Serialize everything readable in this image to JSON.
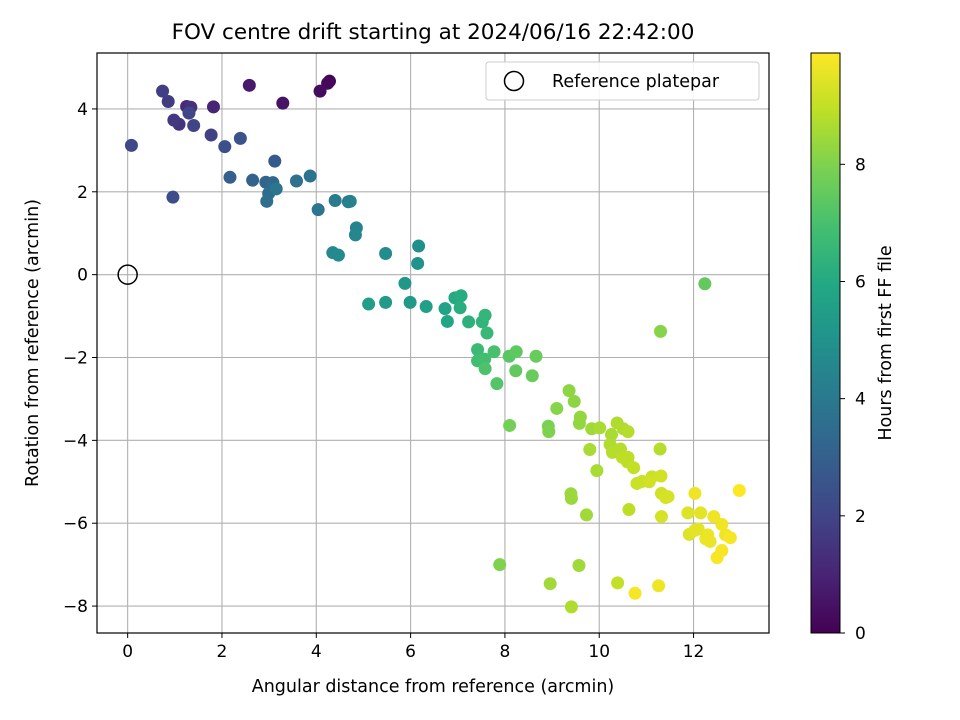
{
  "chart_data": {
    "type": "scatter",
    "title": "FOV centre drift starting at 2024/06/16 22:42:00",
    "xlabel": "Angular distance from reference (arcmin)",
    "ylabel": "Rotation from reference (arcmin)",
    "xlim": [
      -0.65,
      13.6
    ],
    "ylim": [
      -8.65,
      5.35
    ],
    "xticks": [
      0,
      2,
      4,
      6,
      8,
      10,
      12
    ],
    "yticks": [
      -8,
      -6,
      -4,
      -2,
      0,
      2,
      4
    ],
    "xtick_labels": [
      "0",
      "2",
      "4",
      "6",
      "8",
      "10",
      "12"
    ],
    "ytick_labels": [
      "−8",
      "−6",
      "−4",
      "−2",
      "0",
      "2",
      "4"
    ],
    "grid": true,
    "legend": {
      "label": "Reference platepar",
      "position": "top-right"
    },
    "reference_point": {
      "x": 0,
      "y": 0
    },
    "colorbar": {
      "label": "Hours from first FF file",
      "range": [
        0,
        9.9
      ],
      "ticks": [
        0,
        2,
        4,
        6,
        8
      ],
      "tick_labels": [
        "0",
        "2",
        "4",
        "6",
        "8"
      ],
      "colormap": "viridis"
    },
    "points": [
      [
        4.28,
        4.67,
        0.1
      ],
      [
        4.24,
        4.62,
        0.2
      ],
      [
        4.08,
        4.43,
        0.3
      ],
      [
        3.29,
        4.14,
        0.5
      ],
      [
        2.58,
        4.57,
        0.7
      ],
      [
        1.82,
        4.05,
        1.0
      ],
      [
        1.25,
        4.06,
        1.2
      ],
      [
        1.34,
        4.04,
        1.4
      ],
      [
        1.09,
        3.63,
        1.5
      ],
      [
        0.98,
        3.73,
        1.6
      ],
      [
        0.86,
        4.18,
        1.7
      ],
      [
        0.74,
        4.43,
        1.8
      ],
      [
        1.77,
        3.37,
        1.9
      ],
      [
        1.4,
        3.6,
        2.0
      ],
      [
        1.3,
        3.9,
        2.1
      ],
      [
        0.08,
        3.12,
        2.2
      ],
      [
        0.96,
        1.87,
        2.3
      ],
      [
        2.06,
        3.09,
        2.4
      ],
      [
        2.39,
        3.29,
        2.5
      ],
      [
        3.12,
        2.74,
        2.8
      ],
      [
        2.17,
        2.35,
        3.0
      ],
      [
        2.65,
        2.28,
        3.1
      ],
      [
        2.93,
        2.23,
        3.2
      ],
      [
        3.08,
        2.22,
        3.3
      ],
      [
        3.05,
        2.08,
        3.4
      ],
      [
        2.99,
        1.96,
        3.5
      ],
      [
        2.95,
        1.77,
        3.6
      ],
      [
        3.58,
        2.26,
        3.7
      ],
      [
        3.87,
        2.38,
        3.8
      ],
      [
        4.04,
        1.57,
        3.9
      ],
      [
        3.15,
        2.07,
        3.9
      ],
      [
        4.4,
        1.79,
        4.1
      ],
      [
        4.68,
        1.76,
        4.2
      ],
      [
        4.72,
        1.77,
        4.3
      ],
      [
        4.85,
        1.13,
        4.4
      ],
      [
        4.83,
        0.96,
        4.5
      ],
      [
        4.35,
        0.53,
        4.6
      ],
      [
        4.47,
        0.47,
        4.7
      ],
      [
        5.47,
        0.51,
        4.8
      ],
      [
        6.17,
        0.69,
        4.9
      ],
      [
        6.15,
        0.27,
        5.0
      ],
      [
        5.88,
        -0.21,
        5.2
      ],
      [
        5.99,
        -0.67,
        5.3
      ],
      [
        5.47,
        -0.67,
        5.4
      ],
      [
        5.11,
        -0.71,
        5.5
      ],
      [
        6.33,
        -0.77,
        5.6
      ],
      [
        6.73,
        -0.82,
        5.7
      ],
      [
        6.78,
        -1.13,
        5.8
      ],
      [
        6.94,
        -0.56,
        6.0
      ],
      [
        7.07,
        -0.51,
        6.1
      ],
      [
        7.05,
        -0.8,
        6.2
      ],
      [
        7.23,
        -1.14,
        6.3
      ],
      [
        7.52,
        -1.14,
        6.4
      ],
      [
        7.58,
        -0.98,
        6.5
      ],
      [
        7.62,
        -1.41,
        6.6
      ],
      [
        7.42,
        -1.81,
        6.7
      ],
      [
        7.42,
        -2.08,
        6.8
      ],
      [
        7.57,
        -2.04,
        6.9
      ],
      [
        7.77,
        -1.86,
        7.0
      ],
      [
        7.58,
        -2.27,
        7.1
      ],
      [
        7.83,
        -2.63,
        7.2
      ],
      [
        8.09,
        -1.97,
        7.3
      ],
      [
        8.24,
        -1.86,
        7.4
      ],
      [
        8.23,
        -2.32,
        7.5
      ],
      [
        8.58,
        -2.44,
        7.6
      ],
      [
        8.66,
        -1.97,
        7.6
      ],
      [
        8.1,
        -3.64,
        7.8
      ],
      [
        8.92,
        -3.66,
        7.9
      ],
      [
        8.93,
        -3.79,
        8.0
      ],
      [
        7.89,
        -7.0,
        8.0
      ],
      [
        12.24,
        -0.22,
        7.5
      ],
      [
        11.3,
        -1.37,
        8.1
      ],
      [
        9.1,
        -3.23,
        8.1
      ],
      [
        9.36,
        -2.8,
        8.2
      ],
      [
        9.47,
        -3.06,
        8.2
      ],
      [
        9.6,
        -3.44,
        8.3
      ],
      [
        9.58,
        -3.59,
        8.3
      ],
      [
        9.4,
        -5.29,
        8.4
      ],
      [
        9.41,
        -5.4,
        8.4
      ],
      [
        9.73,
        -5.8,
        8.5
      ],
      [
        8.96,
        -7.46,
        8.5
      ],
      [
        9.84,
        -3.72,
        8.5
      ],
      [
        10.01,
        -3.7,
        8.6
      ],
      [
        9.8,
        -4.22,
        8.6
      ],
      [
        9.95,
        -4.73,
        8.6
      ],
      [
        10.26,
        -3.86,
        8.6
      ],
      [
        10.23,
        -4.1,
        8.7
      ],
      [
        10.38,
        -3.58,
        8.7
      ],
      [
        10.51,
        -3.72,
        8.7
      ],
      [
        10.61,
        -3.79,
        8.8
      ],
      [
        10.28,
        -4.29,
        8.8
      ],
      [
        10.45,
        -4.21,
        8.8
      ],
      [
        10.49,
        -4.41,
        8.9
      ],
      [
        10.61,
        -4.41,
        8.9
      ],
      [
        10.6,
        -4.52,
        8.9
      ],
      [
        10.73,
        -4.66,
        9.0
      ],
      [
        10.63,
        -5.67,
        8.9
      ],
      [
        9.57,
        -7.02,
        8.5
      ],
      [
        9.41,
        -8.02,
        8.7
      ],
      [
        10.39,
        -7.44,
        9.0
      ],
      [
        10.8,
        -5.04,
        9.1
      ],
      [
        10.91,
        -4.99,
        9.1
      ],
      [
        11.12,
        -4.88,
        9.1
      ],
      [
        11.06,
        -5.0,
        9.2
      ],
      [
        11.31,
        -4.86,
        9.2
      ],
      [
        11.29,
        -4.21,
        8.8
      ],
      [
        11.32,
        -5.28,
        9.2
      ],
      [
        11.41,
        -5.38,
        9.3
      ],
      [
        11.46,
        -5.36,
        9.3
      ],
      [
        11.32,
        -5.84,
        9.3
      ],
      [
        11.88,
        -5.75,
        9.4
      ],
      [
        11.91,
        -6.27,
        9.4
      ],
      [
        12.03,
        -6.17,
        9.5
      ],
      [
        12.15,
        -5.75,
        9.5
      ],
      [
        12.1,
        -6.14,
        9.5
      ],
      [
        12.3,
        -6.28,
        9.6
      ],
      [
        12.26,
        -6.38,
        9.6
      ],
      [
        12.35,
        -6.44,
        9.6
      ],
      [
        12.43,
        -5.84,
        9.7
      ],
      [
        12.6,
        -6.03,
        9.7
      ],
      [
        12.68,
        -6.28,
        9.7
      ],
      [
        12.78,
        -6.35,
        9.8
      ],
      [
        12.6,
        -6.66,
        9.8
      ],
      [
        12.5,
        -6.83,
        9.8
      ],
      [
        12.03,
        -5.28,
        9.7
      ],
      [
        12.97,
        -5.21,
        9.9
      ],
      [
        11.26,
        -7.51,
        9.7
      ],
      [
        10.76,
        -7.69,
        9.8
      ]
    ]
  }
}
